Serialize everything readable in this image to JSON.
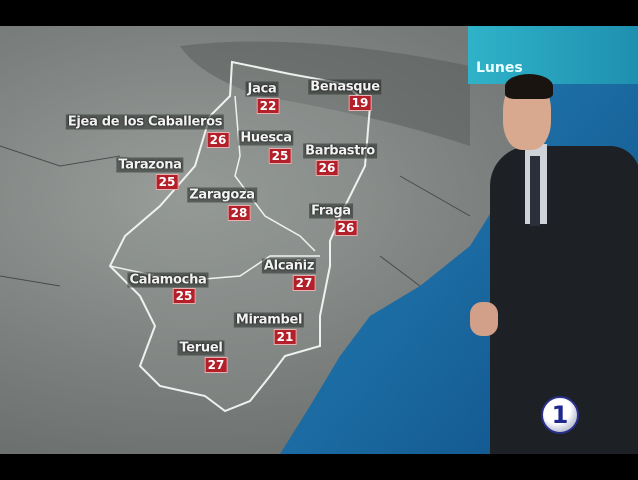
{
  "day_label": "Lunes",
  "channel_logo": "1",
  "cities": [
    {
      "name": "Jaca",
      "temp": "22"
    },
    {
      "name": "Benasque",
      "temp": "19"
    },
    {
      "name": "Ejea de los Caballeros",
      "temp": "26"
    },
    {
      "name": "Huesca",
      "temp": "25"
    },
    {
      "name": "Barbastro",
      "temp": "26"
    },
    {
      "name": "Tarazona",
      "temp": "25"
    },
    {
      "name": "Zaragoza",
      "temp": "28"
    },
    {
      "name": "Fraga",
      "temp": "26"
    },
    {
      "name": "Alcañiz",
      "temp": "27"
    },
    {
      "name": "Calamocha",
      "temp": "25"
    },
    {
      "name": "Mirambel",
      "temp": "21"
    },
    {
      "name": "Teruel",
      "temp": "27"
    }
  ],
  "colors": {
    "temp_box": "#b3202a",
    "sea": "#1d6fa8",
    "day_banner": "#2fb3c9"
  }
}
